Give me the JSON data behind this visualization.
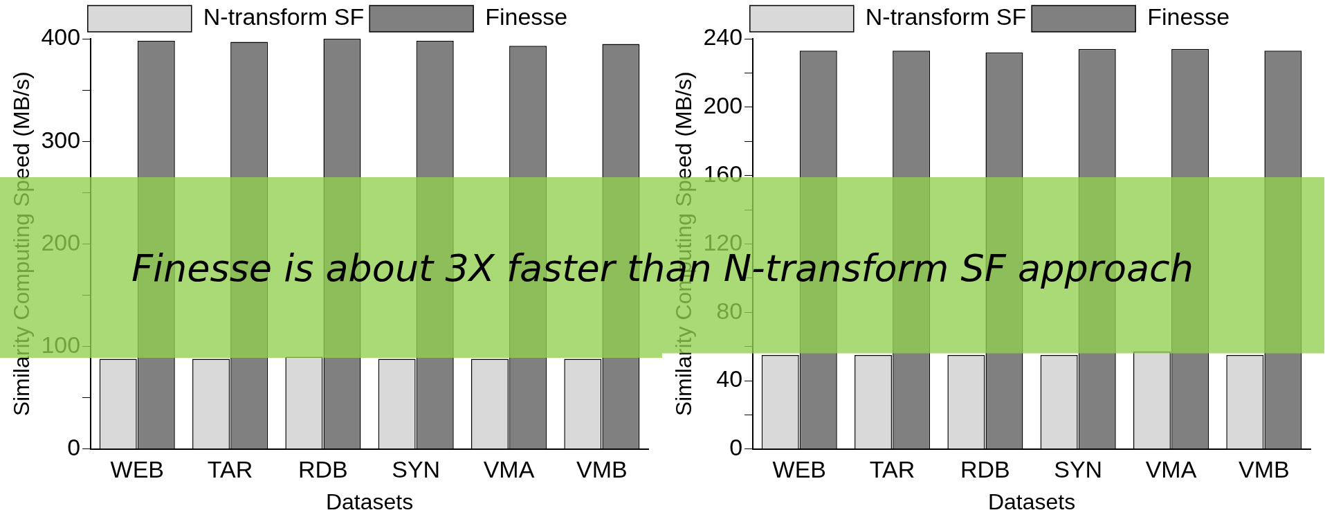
{
  "chart_data": [
    {
      "type": "bar",
      "xlabel": "Datasets",
      "ylabel": "Similarity Computing Speed (MB/s)",
      "categories": [
        "WEB",
        "TAR",
        "RDB",
        "SYN",
        "VMA",
        "VMB"
      ],
      "series": [
        {
          "name": "N-transform SF",
          "color": "#d9d9d9",
          "values": [
            88,
            88,
            90,
            88,
            88,
            88
          ]
        },
        {
          "name": "Finesse",
          "color": "#808080",
          "values": [
            398,
            397,
            400,
            398,
            393,
            395
          ]
        }
      ],
      "ylim": [
        0,
        400
      ],
      "yticks": [
        0,
        {
          "value": 50,
          "label": null
        },
        100,
        {
          "value": 150,
          "label": null
        },
        200,
        {
          "value": 250,
          "label": null
        },
        300,
        {
          "value": 350,
          "label": null
        },
        400
      ],
      "legend": "top",
      "bands": [
        {
          "axis": "y",
          "from": 89,
          "to": 265,
          "color": "#92d050"
        }
      ],
      "annotations": [
        "Finesse is about 3X faster than N-transform SF approach"
      ]
    },
    {
      "type": "bar",
      "xlabel": "Datasets",
      "ylabel": "Similarity Computing Speed (MB/s)",
      "categories": [
        "WEB",
        "TAR",
        "RDB",
        "SYN",
        "VMA",
        "VMB"
      ],
      "series": [
        {
          "name": "N-transform SF",
          "color": "#d9d9d9",
          "values": [
            55,
            55,
            55,
            55,
            57,
            55
          ]
        },
        {
          "name": "Finesse",
          "color": "#808080",
          "values": [
            233,
            233,
            232,
            234,
            234,
            233
          ]
        }
      ],
      "ylim": [
        0,
        240
      ],
      "yticks": [
        0,
        {
          "value": 20,
          "label": null
        },
        40,
        {
          "value": 60,
          "label": null
        },
        80,
        {
          "value": 100,
          "label": null
        },
        120,
        {
          "value": 140,
          "label": null
        },
        160,
        {
          "value": 180,
          "label": null
        },
        200,
        {
          "value": 220,
          "label": null
        },
        240
      ],
      "legend": "top",
      "bands": [
        {
          "axis": "y",
          "from": 56,
          "to": 159,
          "color": "#92d050"
        }
      ]
    }
  ]
}
